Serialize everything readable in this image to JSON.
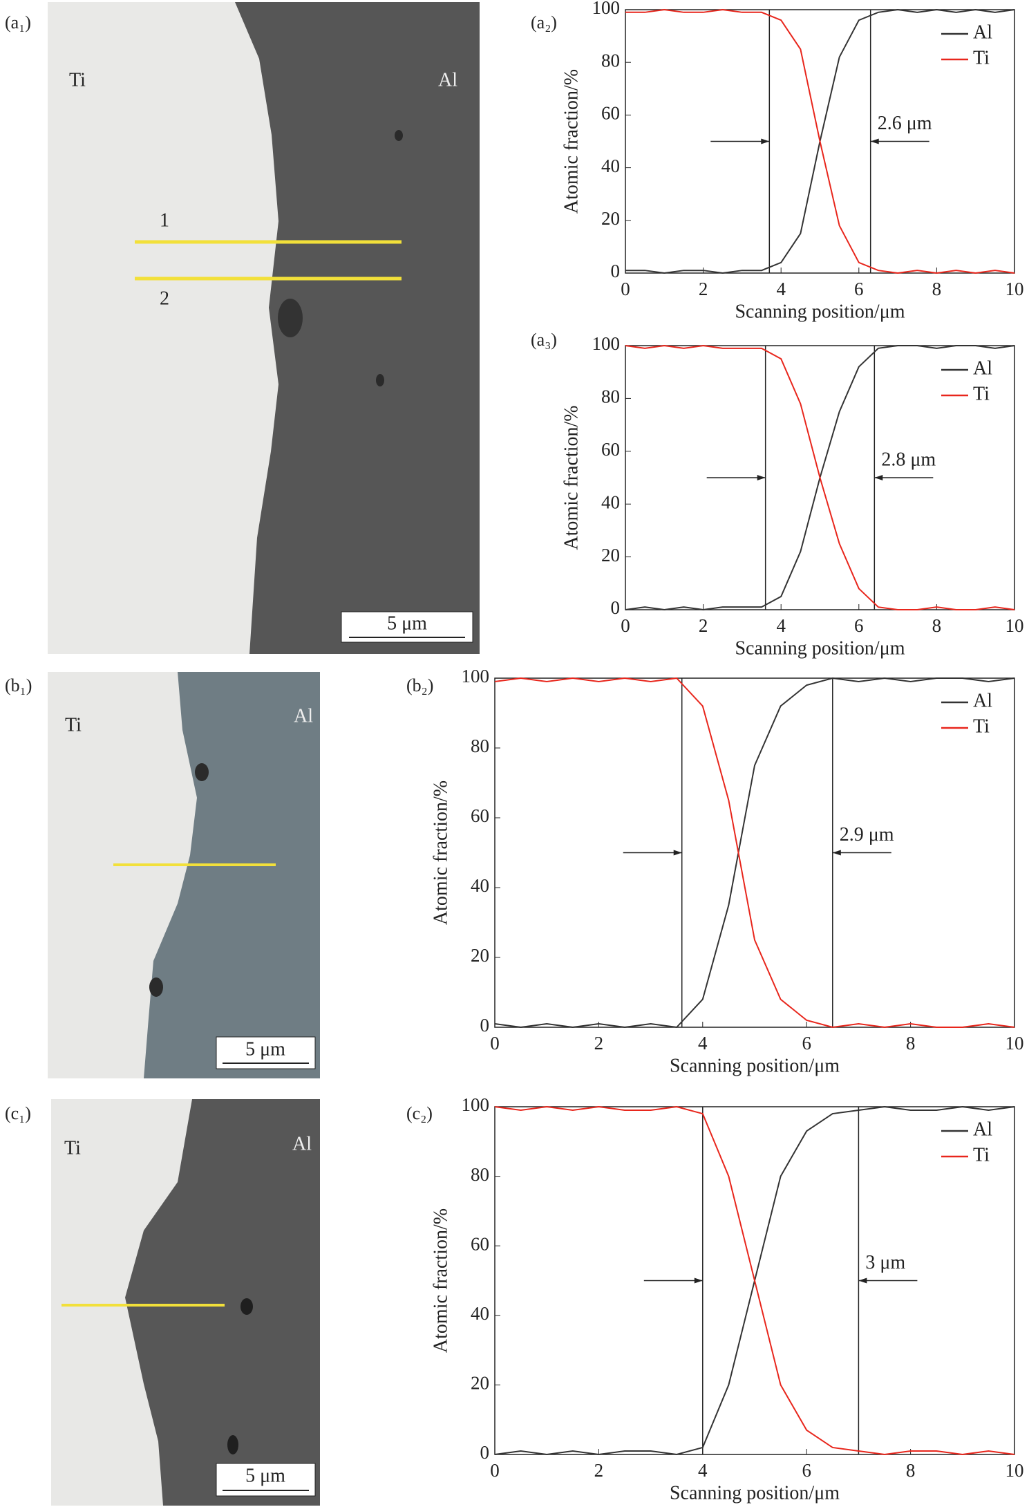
{
  "panels": [
    {
      "label": "(a₁)",
      "left": "Ti",
      "right": "Al",
      "scale": "5 μm",
      "lines": [
        "1",
        "2"
      ]
    },
    {
      "label": "(b₁)",
      "left": "Ti",
      "right": "Al",
      "scale": "5 μm"
    },
    {
      "label": "(c₁)",
      "left": "Ti",
      "right": "Al",
      "scale": "5 μm"
    }
  ],
  "chart_data": [
    {
      "type": "line",
      "label": "(a₂)",
      "xlabel": "Scanning position/μm",
      "ylabel": "Atomic fraction/%",
      "xlim": [
        0,
        10
      ],
      "ylim": [
        0,
        100
      ],
      "xticks": [
        0,
        2,
        4,
        6,
        8,
        10
      ],
      "yticks": [
        0,
        20,
        40,
        60,
        80,
        100
      ],
      "x": [
        0,
        0.5,
        1,
        1.5,
        2,
        2.5,
        3,
        3.5,
        4,
        4.5,
        5,
        5.5,
        6,
        6.5,
        7,
        7.5,
        8,
        8.5,
        9,
        9.5,
        10
      ],
      "series": [
        {
          "name": "Al",
          "color": "#333333",
          "values": [
            1,
            1,
            0,
            1,
            1,
            0,
            1,
            1,
            4,
            15,
            50,
            82,
            96,
            99,
            100,
            99,
            100,
            99,
            100,
            99,
            100
          ]
        },
        {
          "name": "Ti",
          "color": "#e8261c",
          "values": [
            99,
            99,
            100,
            99,
            99,
            100,
            99,
            99,
            96,
            85,
            50,
            18,
            4,
            1,
            0,
            1,
            0,
            1,
            0,
            1,
            0
          ]
        }
      ],
      "boundaries": [
        3.7,
        6.3
      ],
      "annotation": "2.6 μm"
    },
    {
      "type": "line",
      "label": "(a₃)",
      "xlabel": "Scanning position/μm",
      "ylabel": "Atomic fraction/%",
      "xlim": [
        0,
        10
      ],
      "ylim": [
        0,
        100
      ],
      "xticks": [
        0,
        2,
        4,
        6,
        8,
        10
      ],
      "yticks": [
        0,
        20,
        40,
        60,
        80,
        100
      ],
      "x": [
        0,
        0.5,
        1,
        1.5,
        2,
        2.5,
        3,
        3.5,
        4,
        4.5,
        5,
        5.5,
        6,
        6.5,
        7,
        7.5,
        8,
        8.5,
        9,
        9.5,
        10
      ],
      "series": [
        {
          "name": "Al",
          "color": "#333333",
          "values": [
            0,
            1,
            0,
            1,
            0,
            1,
            1,
            1,
            5,
            22,
            50,
            75,
            92,
            99,
            100,
            100,
            99,
            100,
            100,
            99,
            100
          ]
        },
        {
          "name": "Ti",
          "color": "#e8261c",
          "values": [
            100,
            99,
            100,
            99,
            100,
            99,
            99,
            99,
            95,
            78,
            50,
            25,
            8,
            1,
            0,
            0,
            1,
            0,
            0,
            1,
            0
          ]
        }
      ],
      "boundaries": [
        3.6,
        6.4
      ],
      "annotation": "2.8 μm"
    },
    {
      "type": "line",
      "label": "(b₂)",
      "xlabel": "Scanning position/μm",
      "ylabel": "Atomic fraction/%",
      "xlim": [
        0,
        10
      ],
      "ylim": [
        0,
        100
      ],
      "xticks": [
        0,
        2,
        4,
        6,
        8,
        10
      ],
      "yticks": [
        0,
        20,
        40,
        60,
        80,
        100
      ],
      "x": [
        0,
        0.5,
        1,
        1.5,
        2,
        2.5,
        3,
        3.5,
        4,
        4.5,
        5,
        5.5,
        6,
        6.5,
        7,
        7.5,
        8,
        8.5,
        9,
        9.5,
        10
      ],
      "series": [
        {
          "name": "Al",
          "color": "#333333",
          "values": [
            1,
            0,
            1,
            0,
            1,
            0,
            1,
            0,
            8,
            35,
            75,
            92,
            98,
            100,
            99,
            100,
            99,
            100,
            100,
            99,
            100
          ]
        },
        {
          "name": "Ti",
          "color": "#e8261c",
          "values": [
            99,
            100,
            99,
            100,
            99,
            100,
            99,
            100,
            92,
            65,
            25,
            8,
            2,
            0,
            1,
            0,
            1,
            0,
            0,
            1,
            0
          ]
        }
      ],
      "boundaries": [
        3.6,
        6.5
      ],
      "annotation": "2.9 μm"
    },
    {
      "type": "line",
      "label": "(c₂)",
      "xlabel": "Scanning position/μm",
      "ylabel": "Atomic fraction/%",
      "xlim": [
        0,
        10
      ],
      "ylim": [
        0,
        100
      ],
      "xticks": [
        0,
        2,
        4,
        6,
        8,
        10
      ],
      "yticks": [
        0,
        20,
        40,
        60,
        80,
        100
      ],
      "x": [
        0,
        0.5,
        1,
        1.5,
        2,
        2.5,
        3,
        3.5,
        4,
        4.5,
        5,
        5.5,
        6,
        6.5,
        7,
        7.5,
        8,
        8.5,
        9,
        9.5,
        10
      ],
      "series": [
        {
          "name": "Al",
          "color": "#333333",
          "values": [
            0,
            1,
            0,
            1,
            0,
            1,
            1,
            0,
            2,
            20,
            50,
            80,
            93,
            98,
            99,
            100,
            99,
            99,
            100,
            99,
            100
          ]
        },
        {
          "name": "Ti",
          "color": "#e8261c",
          "values": [
            100,
            99,
            100,
            99,
            100,
            99,
            99,
            100,
            98,
            80,
            50,
            20,
            7,
            2,
            1,
            0,
            1,
            1,
            0,
            1,
            0
          ]
        }
      ],
      "boundaries": [
        4.0,
        7.0
      ],
      "annotation": "3 μm"
    }
  ]
}
